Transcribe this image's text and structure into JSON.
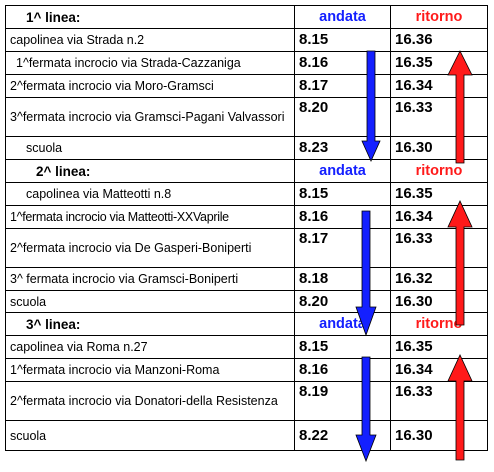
{
  "colors": {
    "andata": "#1420ff",
    "ritorno": "#ff1a1a",
    "border": "#000000"
  },
  "lines": [
    {
      "title": "1^ linea:",
      "andata_label": "andata",
      "ritorno_label": "ritorno",
      "stops": [
        {
          "name": "capolinea via Strada n.2",
          "andata": "8.15",
          "ritorno": "16.36"
        },
        {
          "name": "1^fermata incrocio via Strada-Cazzaniga",
          "andata": "8.16",
          "ritorno": "16.35"
        },
        {
          "name": "2^fermata incrocio via Moro-Gramsci",
          "andata": "8.17",
          "ritorno": "16.34"
        },
        {
          "name": "3^fermata incrocio via Gramsci-Pagani Valvassori",
          "andata": "8.20",
          "ritorno": "16.33"
        },
        {
          "name": "scuola",
          "andata": "8.23",
          "ritorno": "16.30"
        }
      ]
    },
    {
      "title": "2^ linea:",
      "andata_label": "andata",
      "ritorno_label": "ritorno",
      "stops": [
        {
          "name": "capolinea via Matteotti n.8",
          "andata": "8.15",
          "ritorno": "16.35"
        },
        {
          "name": "1^fermata incrocio via Matteotti-XXVaprile",
          "andata": "8.16",
          "ritorno": "16.34"
        },
        {
          "name": "2^fermata incrocio via De Gasperi-Boniperti",
          "andata": "8.17",
          "ritorno": "16.33"
        },
        {
          "name": "3^ fermata incrocio via Gramsci-Boniperti",
          "andata": "8.18",
          "ritorno": "16.32"
        },
        {
          "name": "scuola",
          "andata": "8.20",
          "ritorno": "16.30"
        }
      ]
    },
    {
      "title": "3^ linea:",
      "andata_label": "andata",
      "ritorno_label": "ritorno",
      "stops": [
        {
          "name": "capolinea via Roma n.27",
          "andata": "8.15",
          "ritorno": "16.35"
        },
        {
          "name": "1^fermata incrocio via Manzoni-Roma",
          "andata": "8.16",
          "ritorno": "16.34"
        },
        {
          "name": "2^fermata incrocio via Donatori-della Resistenza",
          "andata": "8.19",
          "ritorno": "16.33"
        },
        {
          "name": "scuola",
          "andata": "8.22",
          "ritorno": "16.30"
        }
      ]
    }
  ]
}
